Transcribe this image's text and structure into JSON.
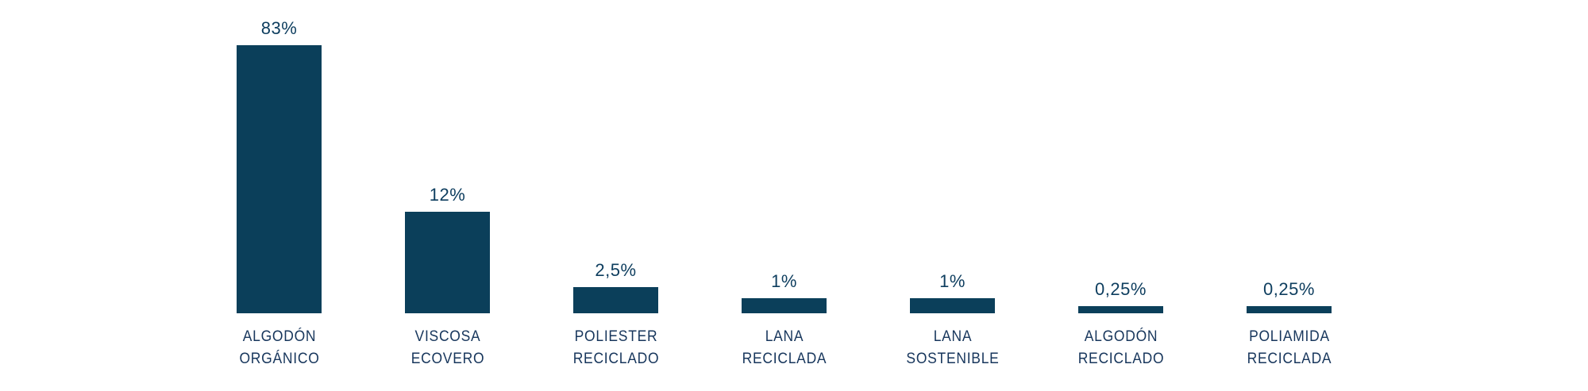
{
  "chart_data": {
    "type": "bar",
    "title": "",
    "xlabel": "",
    "ylabel": "",
    "categories": [
      [
        "ALGODÓN",
        "ORGÁNICO"
      ],
      [
        "VISCOSA",
        "ECOVERO"
      ],
      [
        "POLIESTER",
        "RECICLADO"
      ],
      [
        "LANA",
        "RECICLADA"
      ],
      [
        "LANA",
        "SOSTENIBLE"
      ],
      [
        "ALGODÓN",
        "RECICLADO"
      ],
      [
        "POLIAMIDA",
        "RECICLADA"
      ]
    ],
    "values": [
      83,
      12,
      2.5,
      1,
      1,
      0.25,
      0.25
    ],
    "value_labels": [
      "83%",
      "12%",
      "2,5%",
      "1%",
      "1%",
      "0,25%",
      "0,25%"
    ],
    "grid": false,
    "legend": "none",
    "colors": {
      "bar": "#0b3f5a",
      "text": "#17365c"
    }
  }
}
